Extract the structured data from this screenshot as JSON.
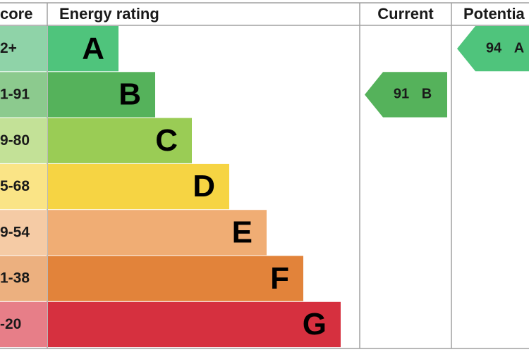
{
  "header": {
    "score": "core",
    "rating": "Energy rating",
    "current": "Current",
    "potential": "Potentia"
  },
  "bands": [
    {
      "range": "2+",
      "letter": "A",
      "color": "#4fc47c",
      "score_color": "#8fd3a8"
    },
    {
      "range": "1-91",
      "letter": "B",
      "color": "#55b25b",
      "score_color": "#8cca8e"
    },
    {
      "range": "9-80",
      "letter": "C",
      "color": "#9acc55",
      "score_color": "#c3e197"
    },
    {
      "range": "5-68",
      "letter": "D",
      "color": "#f6d443",
      "score_color": "#fae486"
    },
    {
      "range": "9-54",
      "letter": "E",
      "color": "#f0ad74",
      "score_color": "#f5cba5"
    },
    {
      "range": "1-38",
      "letter": "F",
      "color": "#e2833a",
      "score_color": "#ecb07f"
    },
    {
      "range": "-20",
      "letter": "G",
      "color": "#d6303f",
      "score_color": "#e77e88"
    }
  ],
  "current": {
    "value": "91",
    "letter": "B"
  },
  "potential": {
    "value": "94",
    "letter": "A"
  }
}
